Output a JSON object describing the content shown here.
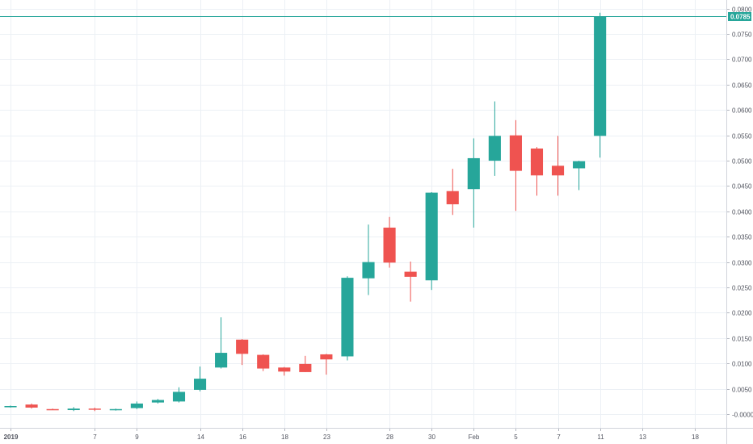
{
  "chart_data": {
    "type": "candlestick",
    "x_ticks": [
      {
        "slot": 0.5,
        "label": "2019",
        "bold": true
      },
      {
        "slot": 4.5,
        "label": "7"
      },
      {
        "slot": 6.5,
        "label": "9"
      },
      {
        "slot": 9.5,
        "label": "14"
      },
      {
        "slot": 11.5,
        "label": "16"
      },
      {
        "slot": 13.5,
        "label": "18"
      },
      {
        "slot": 15.5,
        "label": "23"
      },
      {
        "slot": 18.5,
        "label": "28"
      },
      {
        "slot": 20.5,
        "label": "30"
      },
      {
        "slot": 22.5,
        "label": "Feb"
      },
      {
        "slot": 24.5,
        "label": "5"
      },
      {
        "slot": 26.5,
        "label": "7"
      },
      {
        "slot": 28.5,
        "label": "11"
      },
      {
        "slot": 30.5,
        "label": "13"
      },
      {
        "slot": 33,
        "label": "18"
      }
    ],
    "y_ticks": [
      {
        "value": 0.08,
        "label": "0.0800"
      },
      {
        "value": 0.075,
        "label": "0.0750"
      },
      {
        "value": 0.07,
        "label": "0.0700"
      },
      {
        "value": 0.065,
        "label": "0.0650"
      },
      {
        "value": 0.06,
        "label": "0.0600"
      },
      {
        "value": 0.055,
        "label": "0.0550"
      },
      {
        "value": 0.05,
        "label": "0.0500"
      },
      {
        "value": 0.045,
        "label": "0.0450"
      },
      {
        "value": 0.04,
        "label": "0.0400"
      },
      {
        "value": 0.035,
        "label": "0.0350"
      },
      {
        "value": 0.03,
        "label": "0.0300"
      },
      {
        "value": 0.025,
        "label": "0.0250"
      },
      {
        "value": 0.02,
        "label": "0.0200"
      },
      {
        "value": 0.015,
        "label": "0.0150"
      },
      {
        "value": 0.01,
        "label": "0.0100"
      },
      {
        "value": 0.005,
        "label": "0.0050"
      },
      {
        "value": 0.0,
        "label": "-0.0000"
      }
    ],
    "ylim": [
      -0.0027,
      0.0817
    ],
    "slots": 34.5,
    "last_price": {
      "value": 0.0785,
      "label": "0.0785"
    },
    "colors": {
      "up": "#26a69a",
      "down": "#ef5350",
      "grid": "#ecf0f5",
      "axis_text": "#50535e",
      "last_price": "#26a69a"
    },
    "candles": [
      {
        "o": 0.0015,
        "h": 0.0017,
        "l": 0.0013,
        "c": 0.0016
      },
      {
        "o": 0.0019,
        "h": 0.0021,
        "l": 0.0011,
        "c": 0.0013
      },
      {
        "o": 0.001,
        "h": 0.0011,
        "l": 0.0008,
        "c": 0.0009
      },
      {
        "o": 0.0008,
        "h": 0.0014,
        "l": 0.0006,
        "c": 0.0011
      },
      {
        "o": 0.0011,
        "h": 0.0013,
        "l": 0.0006,
        "c": 0.0009
      },
      {
        "o": 0.0009,
        "h": 0.0011,
        "l": 0.0007,
        "c": 0.001
      },
      {
        "o": 0.0012,
        "h": 0.0025,
        "l": 0.001,
        "c": 0.0021
      },
      {
        "o": 0.0023,
        "h": 0.003,
        "l": 0.0021,
        "c": 0.0028
      },
      {
        "o": 0.0025,
        "h": 0.0053,
        "l": 0.0023,
        "c": 0.0044
      },
      {
        "o": 0.0048,
        "h": 0.0094,
        "l": 0.0045,
        "c": 0.007
      },
      {
        "o": 0.0092,
        "h": 0.0191,
        "l": 0.009,
        "c": 0.0121
      },
      {
        "o": 0.0147,
        "h": 0.0148,
        "l": 0.0097,
        "c": 0.0119
      },
      {
        "o": 0.0117,
        "h": 0.0118,
        "l": 0.0085,
        "c": 0.009
      },
      {
        "o": 0.0092,
        "h": 0.0093,
        "l": 0.0076,
        "c": 0.0084
      },
      {
        "o": 0.0099,
        "h": 0.0115,
        "l": 0.0083,
        "c": 0.0083
      },
      {
        "o": 0.0118,
        "h": 0.0119,
        "l": 0.0078,
        "c": 0.0108
      },
      {
        "o": 0.0114,
        "h": 0.0272,
        "l": 0.0106,
        "c": 0.0269
      },
      {
        "o": 0.0268,
        "h": 0.0374,
        "l": 0.0235,
        "c": 0.03
      },
      {
        "o": 0.0368,
        "h": 0.0389,
        "l": 0.0289,
        "c": 0.0299
      },
      {
        "o": 0.0281,
        "h": 0.0301,
        "l": 0.0222,
        "c": 0.0271
      },
      {
        "o": 0.0264,
        "h": 0.0438,
        "l": 0.0245,
        "c": 0.0437
      },
      {
        "o": 0.044,
        "h": 0.0484,
        "l": 0.0393,
        "c": 0.0414
      },
      {
        "o": 0.0444,
        "h": 0.0544,
        "l": 0.0368,
        "c": 0.0505
      },
      {
        "o": 0.05,
        "h": 0.0617,
        "l": 0.047,
        "c": 0.0549
      },
      {
        "o": 0.055,
        "h": 0.058,
        "l": 0.0401,
        "c": 0.048
      },
      {
        "o": 0.0524,
        "h": 0.0527,
        "l": 0.0431,
        "c": 0.0471
      },
      {
        "o": 0.049,
        "h": 0.0549,
        "l": 0.0431,
        "c": 0.0471
      },
      {
        "o": 0.0485,
        "h": 0.05,
        "l": 0.0442,
        "c": 0.0499
      },
      {
        "o": 0.0549,
        "h": 0.0792,
        "l": 0.0506,
        "c": 0.0785
      }
    ]
  }
}
